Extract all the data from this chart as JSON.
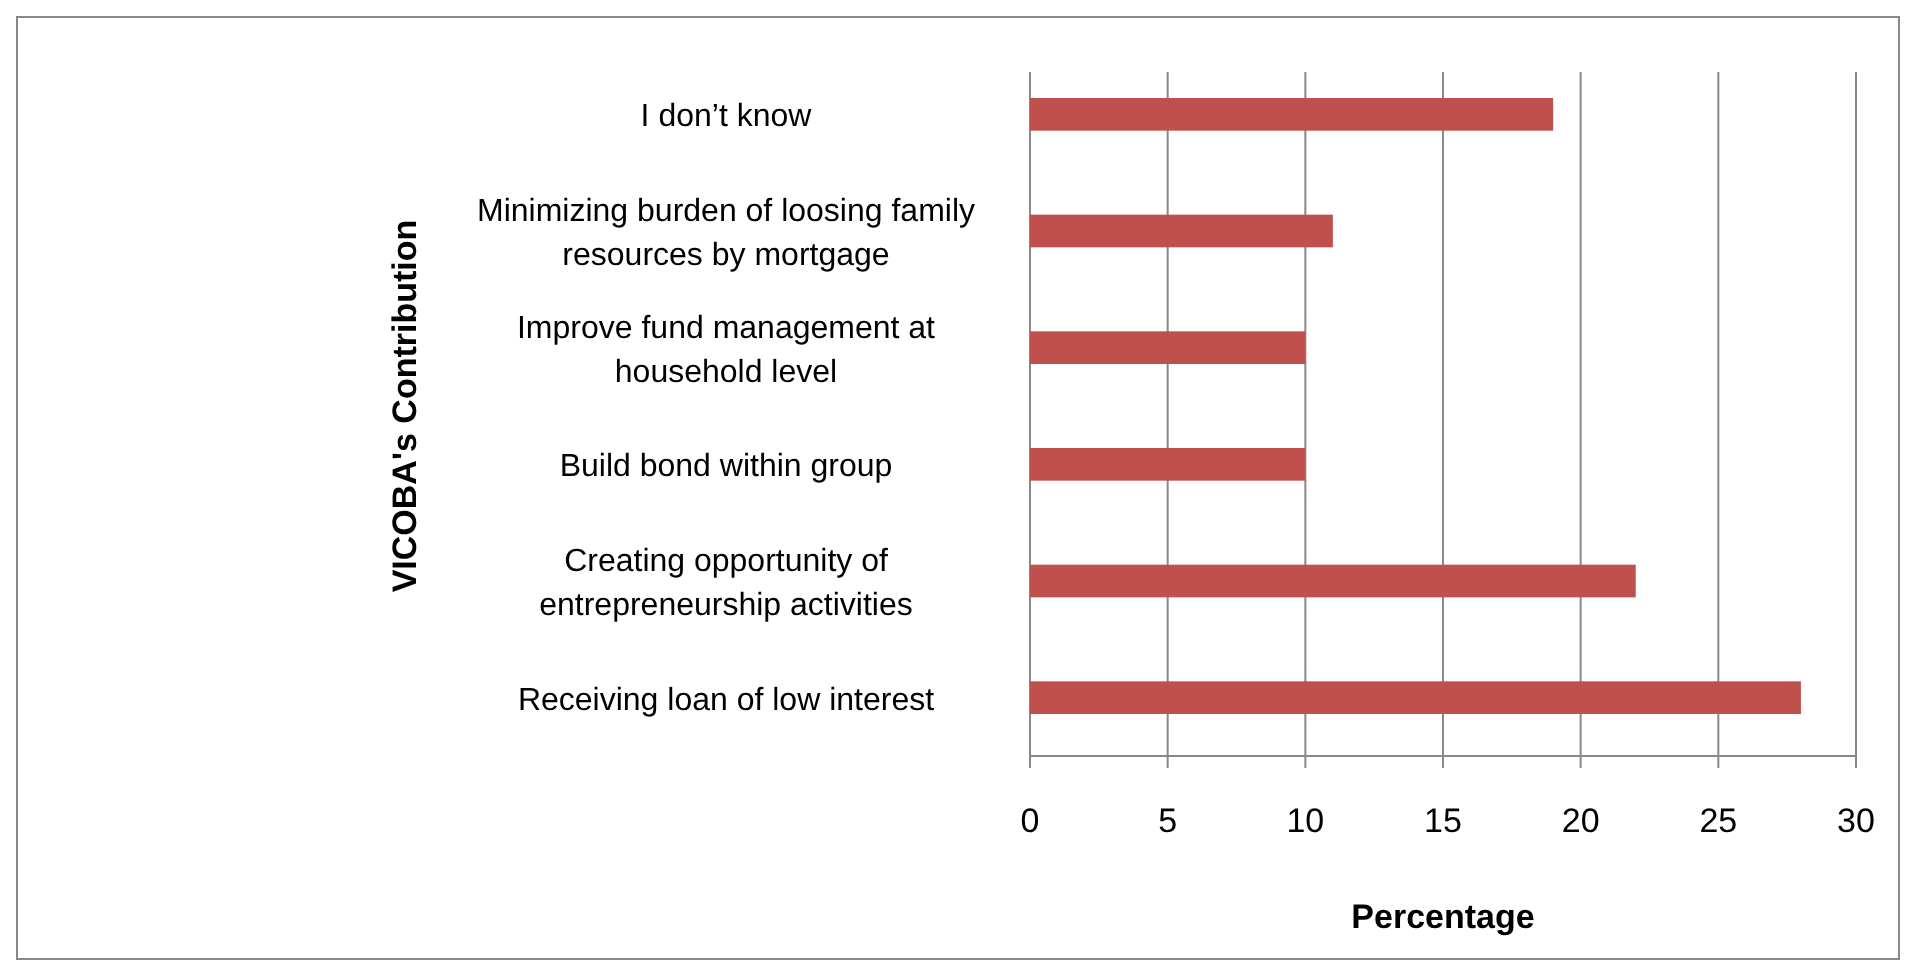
{
  "chart_data": {
    "type": "bar",
    "orientation": "horizontal",
    "xlabel": "Percentage",
    "ylabel": "VICOBA's Contribution",
    "categories": [
      "I don’t know",
      "Minimizing burden of loosing family resources by mortgage",
      "Improve fund management at household level",
      "Build bond within group",
      "Creating opportunity of entrepreneurship activities",
      "Receiving loan of low interest"
    ],
    "values": [
      19,
      11,
      10,
      10,
      22,
      28
    ],
    "color": "#c0504d",
    "xlim": [
      0,
      30
    ],
    "xticks": [
      0,
      5,
      10,
      15,
      20,
      25,
      30
    ],
    "grid": "x"
  }
}
